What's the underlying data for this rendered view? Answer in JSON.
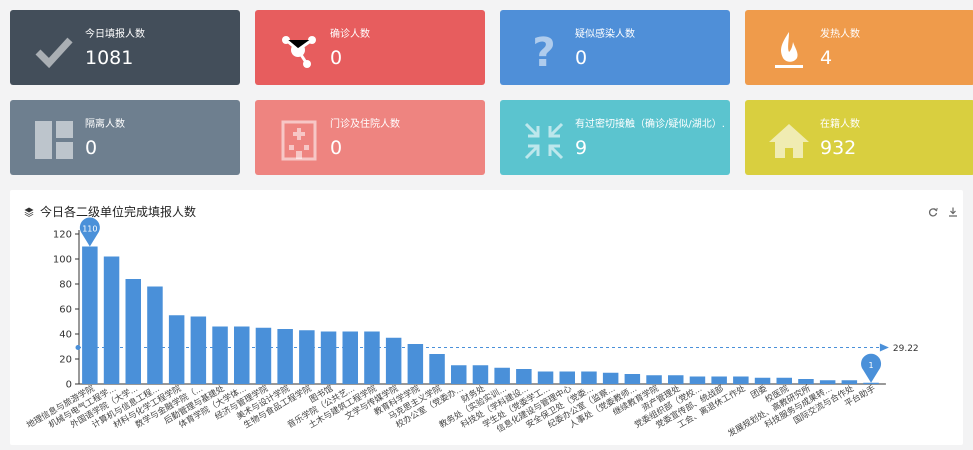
{
  "cards": [
    {
      "label": "今日填报人数",
      "value": "1081",
      "color": "#434e5a",
      "icon": "checkmark-icon"
    },
    {
      "label": "确诊人数",
      "value": "0",
      "color": "#e75d5e",
      "icon": "molecule-icon"
    },
    {
      "label": "疑似感染人数",
      "value": "0",
      "color": "#4f8fd8",
      "icon": "question-icon"
    },
    {
      "label": "发热人数",
      "value": "4",
      "color": "#ef9b4b",
      "icon": "fire-icon"
    },
    {
      "label": "隔离人数",
      "value": "0",
      "color": "#6e7f8f",
      "icon": "layout-icon"
    },
    {
      "label": "门诊及住院人数",
      "value": "0",
      "color": "#ee8480",
      "icon": "hospital-icon"
    },
    {
      "label": "有过密切接触（确诊/疑似/湖北）.",
      "value": "9",
      "color": "#5bc4cf",
      "icon": "compress-icon"
    },
    {
      "label": "在籍人数",
      "value": "932",
      "color": "#d9cf3f",
      "icon": "home-icon"
    }
  ],
  "panel": {
    "title": "今日各二级单位完成填报人数"
  },
  "chart_data": {
    "type": "bar",
    "title": "今日各二级单位完成填报人数",
    "ylim": [
      0,
      120
    ],
    "yticks": [
      0,
      20,
      40,
      60,
      80,
      100,
      120
    ],
    "grid": false,
    "bar_color": "#4a90d9",
    "categories": [
      "地理信息与旅游学院",
      "机械与电气工程学...",
      "外国语学院（大学...",
      "计算机与信息工程...",
      "材料与化学工程学院",
      "数学与金融学院（...",
      "后勤管理与基建处",
      "体育学院（大学体...",
      "经济与管理学院",
      "美术与设计学院",
      "生物与食品工程学院",
      "图书馆",
      "音乐学院（公共艺...",
      "土木与建筑工程学院",
      "文学与传媒学院",
      "教育科学学院",
      "马克思主义学院",
      "校办公室（党委办...",
      "财务处",
      "教务处（实验实训...",
      "科技处（学科建设...",
      "学生处（党委学工...",
      "信息化建设与管理中心",
      "安全保卫处（党委...",
      "纪委办公室（监察...",
      "人事处（党委教师...",
      "继续教育学院",
      "资产管理处",
      "党委组织部（党校...",
      "党委宣传部、统战部",
      "工会、离退休工作处",
      "团委",
      "校医院",
      "发展规划处、高教研究所",
      "科技服务与成果转...",
      "国际交流与合作处",
      "平台助手"
    ],
    "values": [
      110,
      102,
      84,
      78,
      55,
      54,
      46,
      46,
      45,
      44,
      43,
      42,
      42,
      42,
      37,
      32,
      24,
      15,
      15,
      13,
      12,
      10,
      10,
      10,
      9,
      8,
      7,
      7,
      6,
      6,
      6,
      5,
      5,
      4,
      3,
      3,
      1
    ],
    "markpoints": [
      {
        "type": "max",
        "value": "110"
      },
      {
        "type": "min",
        "value": "1"
      }
    ],
    "markline": {
      "type": "average",
      "value": "29.22"
    }
  }
}
